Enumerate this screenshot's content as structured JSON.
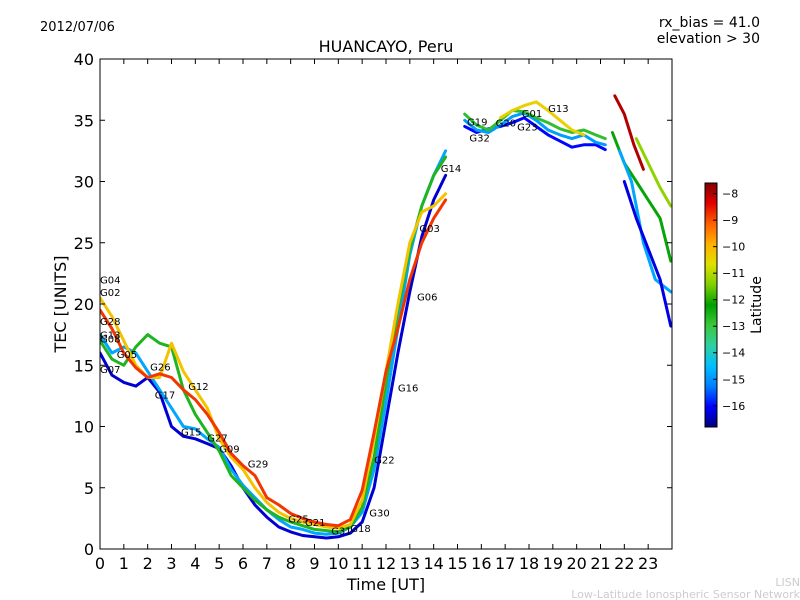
{
  "header": {
    "date": "2012/07/06",
    "bias": "rx_bias = 41.0",
    "elevation": "elevation > 30"
  },
  "footer": {
    "line1": "LISN",
    "line2": "Low-Latitude Ionospheric Sensor Network"
  },
  "colorbar": {
    "label": "Latitude",
    "min": -16.8,
    "max": -7.6,
    "ticks": [
      "−8",
      "−9",
      "−10",
      "−11",
      "−12",
      "−13",
      "−14",
      "−15",
      "−16"
    ],
    "tick_values": [
      -8,
      -9,
      -10,
      -11,
      -12,
      -13,
      -14,
      -15,
      -16
    ],
    "colormap": [
      "#00007f",
      "#0000ff",
      "#007fff",
      "#00bfff",
      "#2fd0a0",
      "#3cc83c",
      "#00a000",
      "#7fd000",
      "#e0e000",
      "#ffb000",
      "#ff6000",
      "#e00000",
      "#7f0000"
    ]
  },
  "chart_data": {
    "type": "line",
    "title": "HUANCAYO, Peru",
    "xlabel": "Time [UT]",
    "ylabel": "TEC [UNITS]",
    "xlim": [
      0,
      24
    ],
    "ylim": [
      0,
      40
    ],
    "xticks": [
      "0",
      "1",
      "2",
      "3",
      "4",
      "5",
      "6",
      "7",
      "8",
      "9",
      "10",
      "11",
      "12",
      "13",
      "14",
      "15",
      "16",
      "17",
      "18",
      "19",
      "20",
      "21",
      "22",
      "23"
    ],
    "yticks": [
      "0",
      "5",
      "10",
      "15",
      "20",
      "25",
      "30",
      "35",
      "40"
    ],
    "series": [
      {
        "name": "blue-track",
        "lat": -16.3,
        "x": [
          0.0,
          0.5,
          1.0,
          1.5,
          2.0,
          2.5,
          3.0,
          3.5,
          4.0,
          4.5,
          5.0,
          5.5,
          6.0,
          6.5,
          7.0,
          7.5,
          8.0,
          8.5,
          9.0,
          9.5,
          10.0,
          10.5,
          11.0,
          11.5,
          12.0,
          12.5,
          13.0,
          13.5,
          14.0,
          14.5
        ],
        "y": [
          16.0,
          14.2,
          13.6,
          13.3,
          14.0,
          12.8,
          10.0,
          9.2,
          9.0,
          8.6,
          8.2,
          6.8,
          5.0,
          3.6,
          2.6,
          1.8,
          1.4,
          1.1,
          1.0,
          0.9,
          1.0,
          1.3,
          2.2,
          5.0,
          10.5,
          16.0,
          21.0,
          25.5,
          28.5,
          30.5
        ]
      },
      {
        "name": "cyan-track",
        "lat": -14.8,
        "x": [
          0.0,
          0.5,
          1.0,
          1.5,
          2.0,
          2.5,
          3.0,
          3.5,
          4.0,
          4.5,
          5.0,
          5.5,
          6.0,
          6.5,
          7.0,
          7.5,
          8.0,
          8.5,
          9.0,
          9.5,
          10.0,
          10.5,
          11.0,
          11.5,
          12.0,
          12.5,
          13.0,
          13.5,
          14.0,
          14.5
        ],
        "y": [
          17.5,
          16.0,
          16.5,
          16.0,
          14.5,
          13.0,
          11.5,
          10.0,
          9.8,
          9.0,
          8.3,
          6.5,
          5.2,
          4.2,
          3.2,
          2.4,
          1.8,
          1.6,
          1.3,
          1.2,
          1.3,
          1.8,
          3.0,
          6.5,
          12.0,
          18.0,
          24.0,
          28.0,
          30.5,
          32.5
        ]
      },
      {
        "name": "green-track",
        "lat": -12.6,
        "x": [
          0.0,
          0.5,
          1.0,
          1.5,
          2.0,
          2.5,
          3.0,
          3.5,
          4.0,
          4.5,
          5.0,
          5.5,
          6.0,
          6.5,
          7.0,
          7.5,
          8.0,
          8.5,
          9.0,
          9.5,
          10.0,
          10.5,
          11.0,
          11.5,
          12.0,
          12.5,
          13.0,
          13.5,
          14.0,
          14.5
        ],
        "y": [
          17.0,
          15.5,
          15.0,
          16.5,
          17.5,
          16.8,
          16.5,
          13.0,
          11.0,
          9.5,
          8.0,
          6.0,
          5.0,
          4.0,
          3.2,
          2.6,
          2.2,
          1.9,
          1.6,
          1.5,
          1.4,
          1.8,
          3.4,
          7.5,
          13.5,
          19.5,
          24.5,
          28.0,
          30.5,
          32.0
        ]
      },
      {
        "name": "yellow-track",
        "lat": -10.2,
        "x": [
          0.0,
          0.5,
          1.0,
          1.5,
          2.0,
          2.5,
          3.0,
          3.5,
          4.0,
          4.5,
          5.0,
          5.5,
          6.0,
          6.5,
          7.0,
          7.5,
          8.0,
          8.5,
          9.0,
          9.5,
          10.0,
          10.5,
          11.0,
          11.5,
          12.0,
          12.5,
          13.0,
          13.5,
          14.0,
          14.5
        ],
        "y": [
          20.5,
          19.0,
          17.0,
          15.0,
          14.0,
          14.0,
          16.8,
          14.5,
          13.0,
          11.5,
          9.0,
          7.5,
          6.5,
          5.0,
          3.8,
          3.0,
          2.5,
          2.2,
          2.0,
          1.8,
          1.7,
          2.0,
          4.0,
          9.0,
          14.5,
          20.0,
          25.0,
          27.5,
          28.0,
          29.0
        ]
      },
      {
        "name": "orange-red-track",
        "lat": -8.8,
        "x": [
          0.0,
          0.5,
          1.0,
          1.5,
          2.0,
          2.5,
          3.0,
          3.5,
          4.0,
          4.5,
          5.0,
          5.5,
          6.0,
          6.5,
          7.0,
          7.5,
          8.0,
          8.5,
          9.0,
          9.5,
          10.0,
          10.5,
          11.0,
          11.5,
          12.0,
          12.5,
          13.0,
          13.5,
          14.0,
          14.5
        ],
        "y": [
          19.5,
          18.0,
          16.0,
          14.8,
          14.0,
          14.3,
          14.0,
          13.0,
          12.2,
          11.0,
          9.5,
          7.8,
          6.8,
          6.0,
          4.2,
          3.6,
          2.9,
          2.5,
          2.2,
          2.0,
          1.9,
          2.4,
          4.8,
          9.5,
          14.5,
          18.0,
          22.0,
          25.0,
          27.0,
          28.5
        ]
      },
      {
        "name": "plateau-blue",
        "lat": -16.0,
        "x": [
          15.3,
          15.8,
          16.3,
          16.8,
          17.3,
          17.8,
          18.3,
          18.8,
          19.3,
          19.8,
          20.3,
          20.8,
          21.2
        ],
        "y": [
          34.5,
          34.0,
          34.3,
          34.5,
          34.8,
          35.2,
          34.5,
          33.8,
          33.3,
          32.8,
          33.0,
          33.0,
          32.6
        ]
      },
      {
        "name": "plateau-cyan",
        "lat": -14.9,
        "x": [
          15.3,
          15.8,
          16.3,
          16.8,
          17.3,
          17.8,
          18.3,
          18.8,
          19.3,
          19.8,
          20.3,
          20.8,
          21.2
        ],
        "y": [
          35.0,
          34.2,
          34.0,
          34.6,
          35.3,
          35.6,
          35.0,
          34.2,
          33.8,
          33.5,
          33.8,
          33.2,
          33.0
        ]
      },
      {
        "name": "plateau-green",
        "lat": -12.8,
        "x": [
          15.3,
          15.8,
          16.3,
          16.8,
          17.3,
          17.8,
          18.3,
          18.8,
          19.3,
          19.8,
          20.3,
          20.8,
          21.2
        ],
        "y": [
          35.5,
          34.6,
          34.2,
          35.0,
          35.8,
          35.7,
          35.2,
          34.8,
          34.3,
          34.0,
          34.2,
          33.8,
          33.5
        ]
      },
      {
        "name": "plateau-yellow",
        "lat": -10.4,
        "x": [
          16.8,
          17.3,
          17.8,
          18.3,
          18.8,
          19.3,
          19.8,
          20.3
        ],
        "y": [
          35.2,
          35.8,
          36.2,
          36.5,
          35.8,
          35.0,
          34.2,
          33.8
        ]
      },
      {
        "name": "late-green",
        "lat": -12.3,
        "x": [
          21.5,
          22.0,
          22.5,
          23.0,
          23.5,
          23.95
        ],
        "y": [
          34.0,
          31.5,
          30.0,
          28.5,
          27.0,
          23.5
        ]
      },
      {
        "name": "late-cyan",
        "lat": -14.8,
        "x": [
          21.8,
          22.3,
          22.8,
          23.3,
          23.95
        ],
        "y": [
          32.5,
          30.0,
          25.0,
          22.0,
          21.0
        ]
      },
      {
        "name": "late-blue",
        "lat": -16.2,
        "x": [
          22.0,
          22.5,
          23.0,
          23.5,
          23.95
        ],
        "y": [
          30.0,
          27.0,
          24.5,
          22.0,
          18.2
        ]
      },
      {
        "name": "late-red",
        "lat": -8.0,
        "x": [
          21.6,
          22.0,
          22.4,
          22.8
        ],
        "y": [
          37.0,
          35.5,
          33.0,
          31.0
        ]
      },
      {
        "name": "late-lightgreen",
        "lat": -11.3,
        "x": [
          22.5,
          23.0,
          23.5,
          23.95
        ],
        "y": [
          33.5,
          31.5,
          29.5,
          28.0
        ]
      }
    ],
    "annotations": [
      {
        "text": "G04",
        "x": 0.0,
        "y": 22.0
      },
      {
        "text": "G02",
        "x": 0.0,
        "y": 21.0
      },
      {
        "text": "G28",
        "x": 0.0,
        "y": 18.6
      },
      {
        "text": "G13",
        "x": 0.0,
        "y": 17.5
      },
      {
        "text": "G08",
        "x": 0.0,
        "y": 17.2
      },
      {
        "text": "G05",
        "x": 0.7,
        "y": 15.9
      },
      {
        "text": "G07",
        "x": 0.0,
        "y": 14.7
      },
      {
        "text": "G26",
        "x": 2.1,
        "y": 14.9
      },
      {
        "text": "G17",
        "x": 2.3,
        "y": 12.6
      },
      {
        "text": "G12",
        "x": 3.7,
        "y": 13.3
      },
      {
        "text": "G15",
        "x": 3.4,
        "y": 9.6
      },
      {
        "text": "G27",
        "x": 4.5,
        "y": 9.1
      },
      {
        "text": "G09",
        "x": 5.0,
        "y": 8.2
      },
      {
        "text": "G29",
        "x": 6.2,
        "y": 7.0
      },
      {
        "text": "G25",
        "x": 7.9,
        "y": 2.5
      },
      {
        "text": "G21",
        "x": 8.6,
        "y": 2.2
      },
      {
        "text": "G31",
        "x": 9.7,
        "y": 1.5
      },
      {
        "text": "G18",
        "x": 10.5,
        "y": 1.7
      },
      {
        "text": "G30",
        "x": 11.3,
        "y": 3.0
      },
      {
        "text": "G22",
        "x": 11.5,
        "y": 7.3
      },
      {
        "text": "G16",
        "x": 12.5,
        "y": 13.2
      },
      {
        "text": "G06",
        "x": 13.3,
        "y": 20.6
      },
      {
        "text": "G03",
        "x": 13.4,
        "y": 26.2
      },
      {
        "text": "G14",
        "x": 14.3,
        "y": 31.1
      },
      {
        "text": "G32",
        "x": 15.5,
        "y": 33.6
      },
      {
        "text": "G19",
        "x": 15.4,
        "y": 34.9
      },
      {
        "text": "G20",
        "x": 16.6,
        "y": 34.8
      },
      {
        "text": "G23",
        "x": 17.5,
        "y": 34.5
      },
      {
        "text": "G01",
        "x": 17.7,
        "y": 35.6
      },
      {
        "text": "G13",
        "x": 18.8,
        "y": 36.0
      }
    ]
  }
}
